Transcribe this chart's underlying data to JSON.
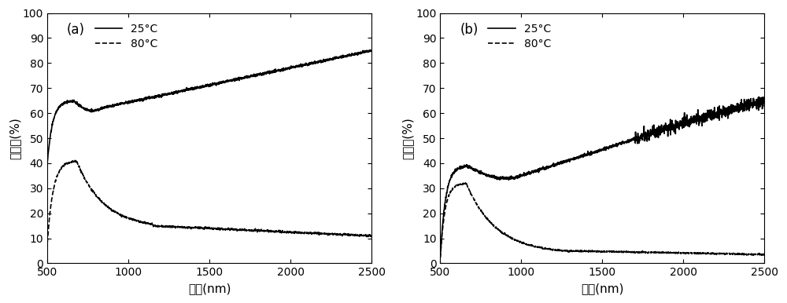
{
  "title_a": "(a)",
  "title_b": "(b)",
  "xlabel": "波长(nm)",
  "ylabel": "透过率(%)",
  "legend_solid": "25°C",
  "legend_dashed": "80°C",
  "xlim": [
    500,
    2500
  ],
  "ylim": [
    0,
    100
  ],
  "xticks": [
    500,
    1000,
    1500,
    2000,
    2500
  ],
  "yticks": [
    0,
    10,
    20,
    30,
    40,
    50,
    60,
    70,
    80,
    90,
    100
  ],
  "figsize": [
    10.0,
    3.86
  ],
  "dpi": 100
}
